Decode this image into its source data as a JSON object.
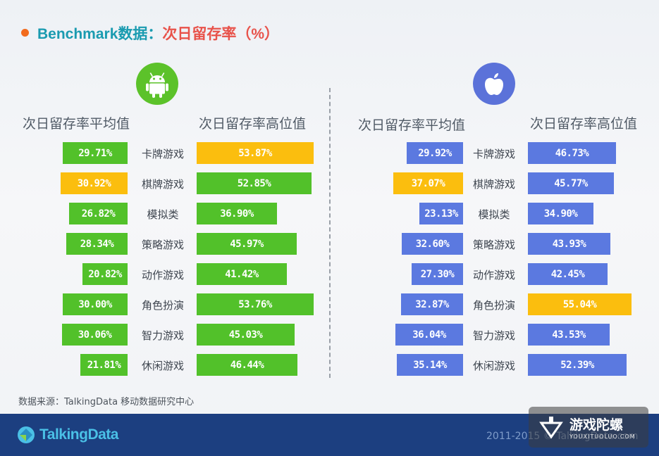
{
  "title": {
    "part1": "Benchmark数据：",
    "part2": "次日留存率（%）",
    "dot_color": "#f26b1d"
  },
  "headers": {
    "android_avg": "次日留存率平均值",
    "android_high": "次日留存率高位值",
    "ios_avg": "次日留存率平均值",
    "ios_high": "次日留存率高位值"
  },
  "icons": {
    "android": {
      "name": "android-icon",
      "color": "#5cc22a"
    },
    "ios": {
      "name": "apple-icon",
      "color": "#5b72d9"
    }
  },
  "colors": {
    "android": "#52c12a",
    "ios": "#5b79e0",
    "highlight": "#fbbe0e"
  },
  "chart_data": [
    {
      "type": "bar",
      "platform": "Android",
      "categories": [
        "卡牌游戏",
        "棋牌游戏",
        "模拟类",
        "策略游戏",
        "动作游戏",
        "角色扮演",
        "智力游戏",
        "休闲游戏"
      ],
      "series": [
        {
          "name": "次日留存率平均值",
          "values": [
            29.71,
            30.92,
            26.82,
            28.34,
            20.82,
            30.0,
            30.06,
            21.81
          ],
          "labels": [
            "29.71%",
            "30.92%",
            "26.82%",
            "28.34%",
            "20.82%",
            "30.00%",
            "30.06%",
            "21.81%"
          ],
          "highlight_index": 1
        },
        {
          "name": "次日留存率高位值",
          "values": [
            53.87,
            52.85,
            36.9,
            45.97,
            41.42,
            53.76,
            45.03,
            46.44
          ],
          "labels": [
            "53.87%",
            "52.85%",
            "36.90%",
            "45.97%",
            "41.42%",
            "53.76%",
            "45.03%",
            "46.44%"
          ],
          "highlight_index": 0
        }
      ]
    },
    {
      "type": "bar",
      "platform": "iOS",
      "categories": [
        "卡牌游戏",
        "棋牌游戏",
        "模拟类",
        "策略游戏",
        "动作游戏",
        "角色扮演",
        "智力游戏",
        "休闲游戏"
      ],
      "series": [
        {
          "name": "次日留存率平均值",
          "values": [
            29.92,
            37.07,
            23.13,
            32.6,
            27.3,
            32.87,
            36.04,
            35.14
          ],
          "labels": [
            "29.92%",
            "37.07%",
            "23.13%",
            "32.60%",
            "27.30%",
            "32.87%",
            "36.04%",
            "35.14%"
          ],
          "highlight_index": 1
        },
        {
          "name": "次日留存率高位值",
          "values": [
            46.73,
            45.77,
            34.9,
            43.93,
            42.45,
            55.04,
            43.53,
            52.39
          ],
          "labels": [
            "46.73%",
            "45.77%",
            "34.90%",
            "43.93%",
            "42.45%",
            "55.04%",
            "43.53%",
            "52.39%"
          ],
          "highlight_index": 5
        }
      ]
    }
  ],
  "source": "数据来源：TalkingData 移动数据研究中心",
  "footer": {
    "logo": "TalkingData",
    "copyright": "2011-2015 © TalkingData.com"
  },
  "watermark": {
    "title": "游戏陀螺",
    "subtitle": "YOUXITUOLUO.COM"
  }
}
